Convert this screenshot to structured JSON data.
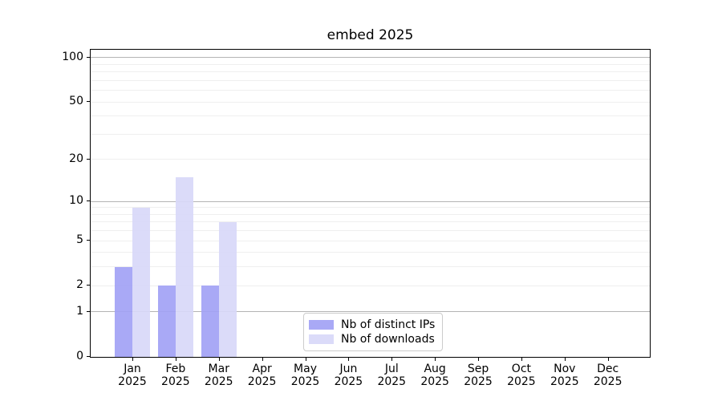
{
  "chart_data": {
    "type": "bar",
    "title": "embed 2025",
    "categories": [
      "Jan",
      "Feb",
      "Mar",
      "Apr",
      "May",
      "Jun",
      "Jul",
      "Aug",
      "Sep",
      "Oct",
      "Nov",
      "Dec"
    ],
    "category_year": "2025",
    "series": [
      {
        "name": "Nb of distinct IPs",
        "color": "#a2a2f5",
        "opacity": 0.92,
        "values": [
          3,
          2,
          2,
          0,
          0,
          0,
          0,
          0,
          0,
          0,
          0,
          0
        ]
      },
      {
        "name": "Nb of downloads",
        "color": "#d8d8f9",
        "opacity": 0.92,
        "values": [
          9,
          15,
          7,
          0,
          0,
          0,
          0,
          0,
          0,
          0,
          0,
          0
        ]
      }
    ],
    "xlabel": "",
    "ylabel": "",
    "y_scale": "log1p",
    "ylim": [
      0,
      113
    ],
    "y_ticks": [
      0,
      1,
      2,
      5,
      10,
      20,
      50,
      100
    ],
    "y_major_gridlines": [
      1,
      10,
      100
    ],
    "y_minor_gridlines": [
      2,
      3,
      4,
      5,
      6,
      7,
      8,
      9,
      20,
      30,
      40,
      50,
      60,
      70,
      80,
      90
    ],
    "grid_color_major": "#b4b4b4",
    "grid_color_minor": "#efefef",
    "legend_position": "lower center",
    "legend_border_color": "#cccccc"
  }
}
